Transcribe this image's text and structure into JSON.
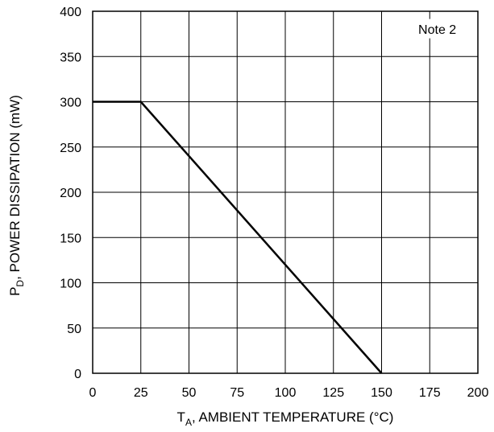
{
  "chart_data": {
    "type": "line",
    "title": "",
    "annotation": "Note 2",
    "xlabel": {
      "main": "T",
      "sub": "A",
      "rest": ", AMBIENT TEMPERATURE (°C)"
    },
    "ylabel": {
      "main": "P",
      "sub": "D",
      "rest": ", POWER DISSIPATION (mW)"
    },
    "xlim": [
      0,
      200
    ],
    "ylim": [
      0,
      400
    ],
    "x_ticks": [
      0,
      25,
      50,
      75,
      100,
      125,
      150,
      175,
      200
    ],
    "y_ticks": [
      0,
      50,
      100,
      150,
      200,
      250,
      300,
      350,
      400
    ],
    "grid": true,
    "series": [
      {
        "x": [
          0,
          25,
          150
        ],
        "y": [
          300,
          300,
          0
        ]
      }
    ]
  }
}
